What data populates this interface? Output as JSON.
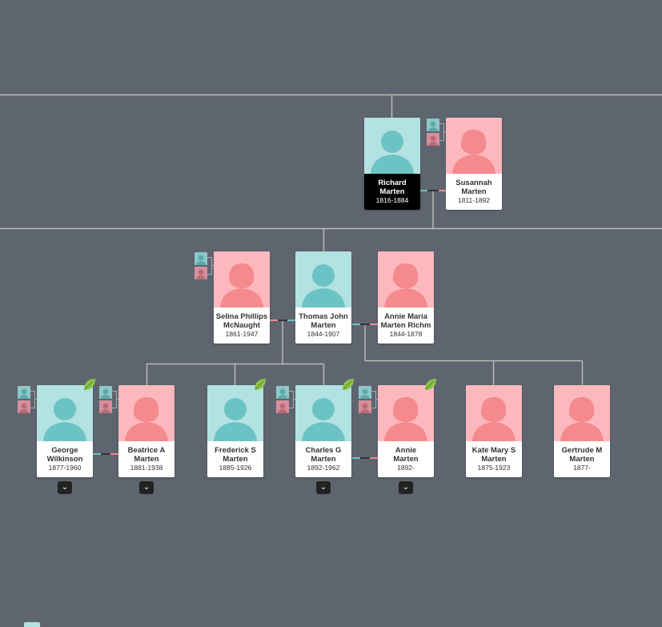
{
  "tree": {
    "people": [
      {
        "id": "richard",
        "name_line1": "Richard",
        "name_line2": "Marten",
        "dates": "1816-1884",
        "gender": "male",
        "selected": true
      },
      {
        "id": "susannah",
        "name_line1": "Susannah",
        "name_line2": "Marten",
        "dates": "1811-1892",
        "gender": "female",
        "selected": false
      },
      {
        "id": "selina",
        "name_line1": "Selina Phillips",
        "name_line2": "McNaught",
        "dates": "1861-1947",
        "gender": "female",
        "selected": false
      },
      {
        "id": "thomas",
        "name_line1": "Thomas John",
        "name_line2": "Marten",
        "dates": "1844-1907",
        "gender": "male",
        "selected": false
      },
      {
        "id": "annie_maria",
        "name_line1": "Annie Maria",
        "name_line2": "Marten Richm",
        "dates": "1844-1878",
        "gender": "female",
        "selected": false
      },
      {
        "id": "george",
        "name_line1": "George",
        "name_line2": "Wilkinson",
        "dates": "1877-1960",
        "gender": "male",
        "selected": false
      },
      {
        "id": "beatrice",
        "name_line1": "Beatrice A",
        "name_line2": "Marten",
        "dates": "1881-1938",
        "gender": "female",
        "selected": false
      },
      {
        "id": "frederick",
        "name_line1": "Frederick S",
        "name_line2": "Marten",
        "dates": "1885-1926",
        "gender": "male",
        "selected": false
      },
      {
        "id": "charles",
        "name_line1": "Charles G",
        "name_line2": "Marten",
        "dates": "1892-1962",
        "gender": "male",
        "selected": false
      },
      {
        "id": "annie",
        "name_line1": "Annie",
        "name_line2": "Marten",
        "dates": "1892-",
        "gender": "female",
        "selected": false
      },
      {
        "id": "kate",
        "name_line1": "Kate Mary S",
        "name_line2": "Marten",
        "dates": "1875-1923",
        "gender": "female",
        "selected": false
      },
      {
        "id": "gertrude",
        "name_line1": "Gertrude M",
        "name_line2": "Marten",
        "dates": "1877-",
        "gender": "female",
        "selected": false
      }
    ],
    "expand_glyph": "⌄",
    "colors": {
      "background": "#5f656f",
      "male_photo": "#b2e2e1",
      "male_silhouette": "#6cc3c3",
      "female_photo": "#fdb8bd",
      "female_silhouette": "#f48a8e",
      "line": "#b7bab6",
      "selected_info": "#000000",
      "leaf": "#8bc34a"
    }
  }
}
